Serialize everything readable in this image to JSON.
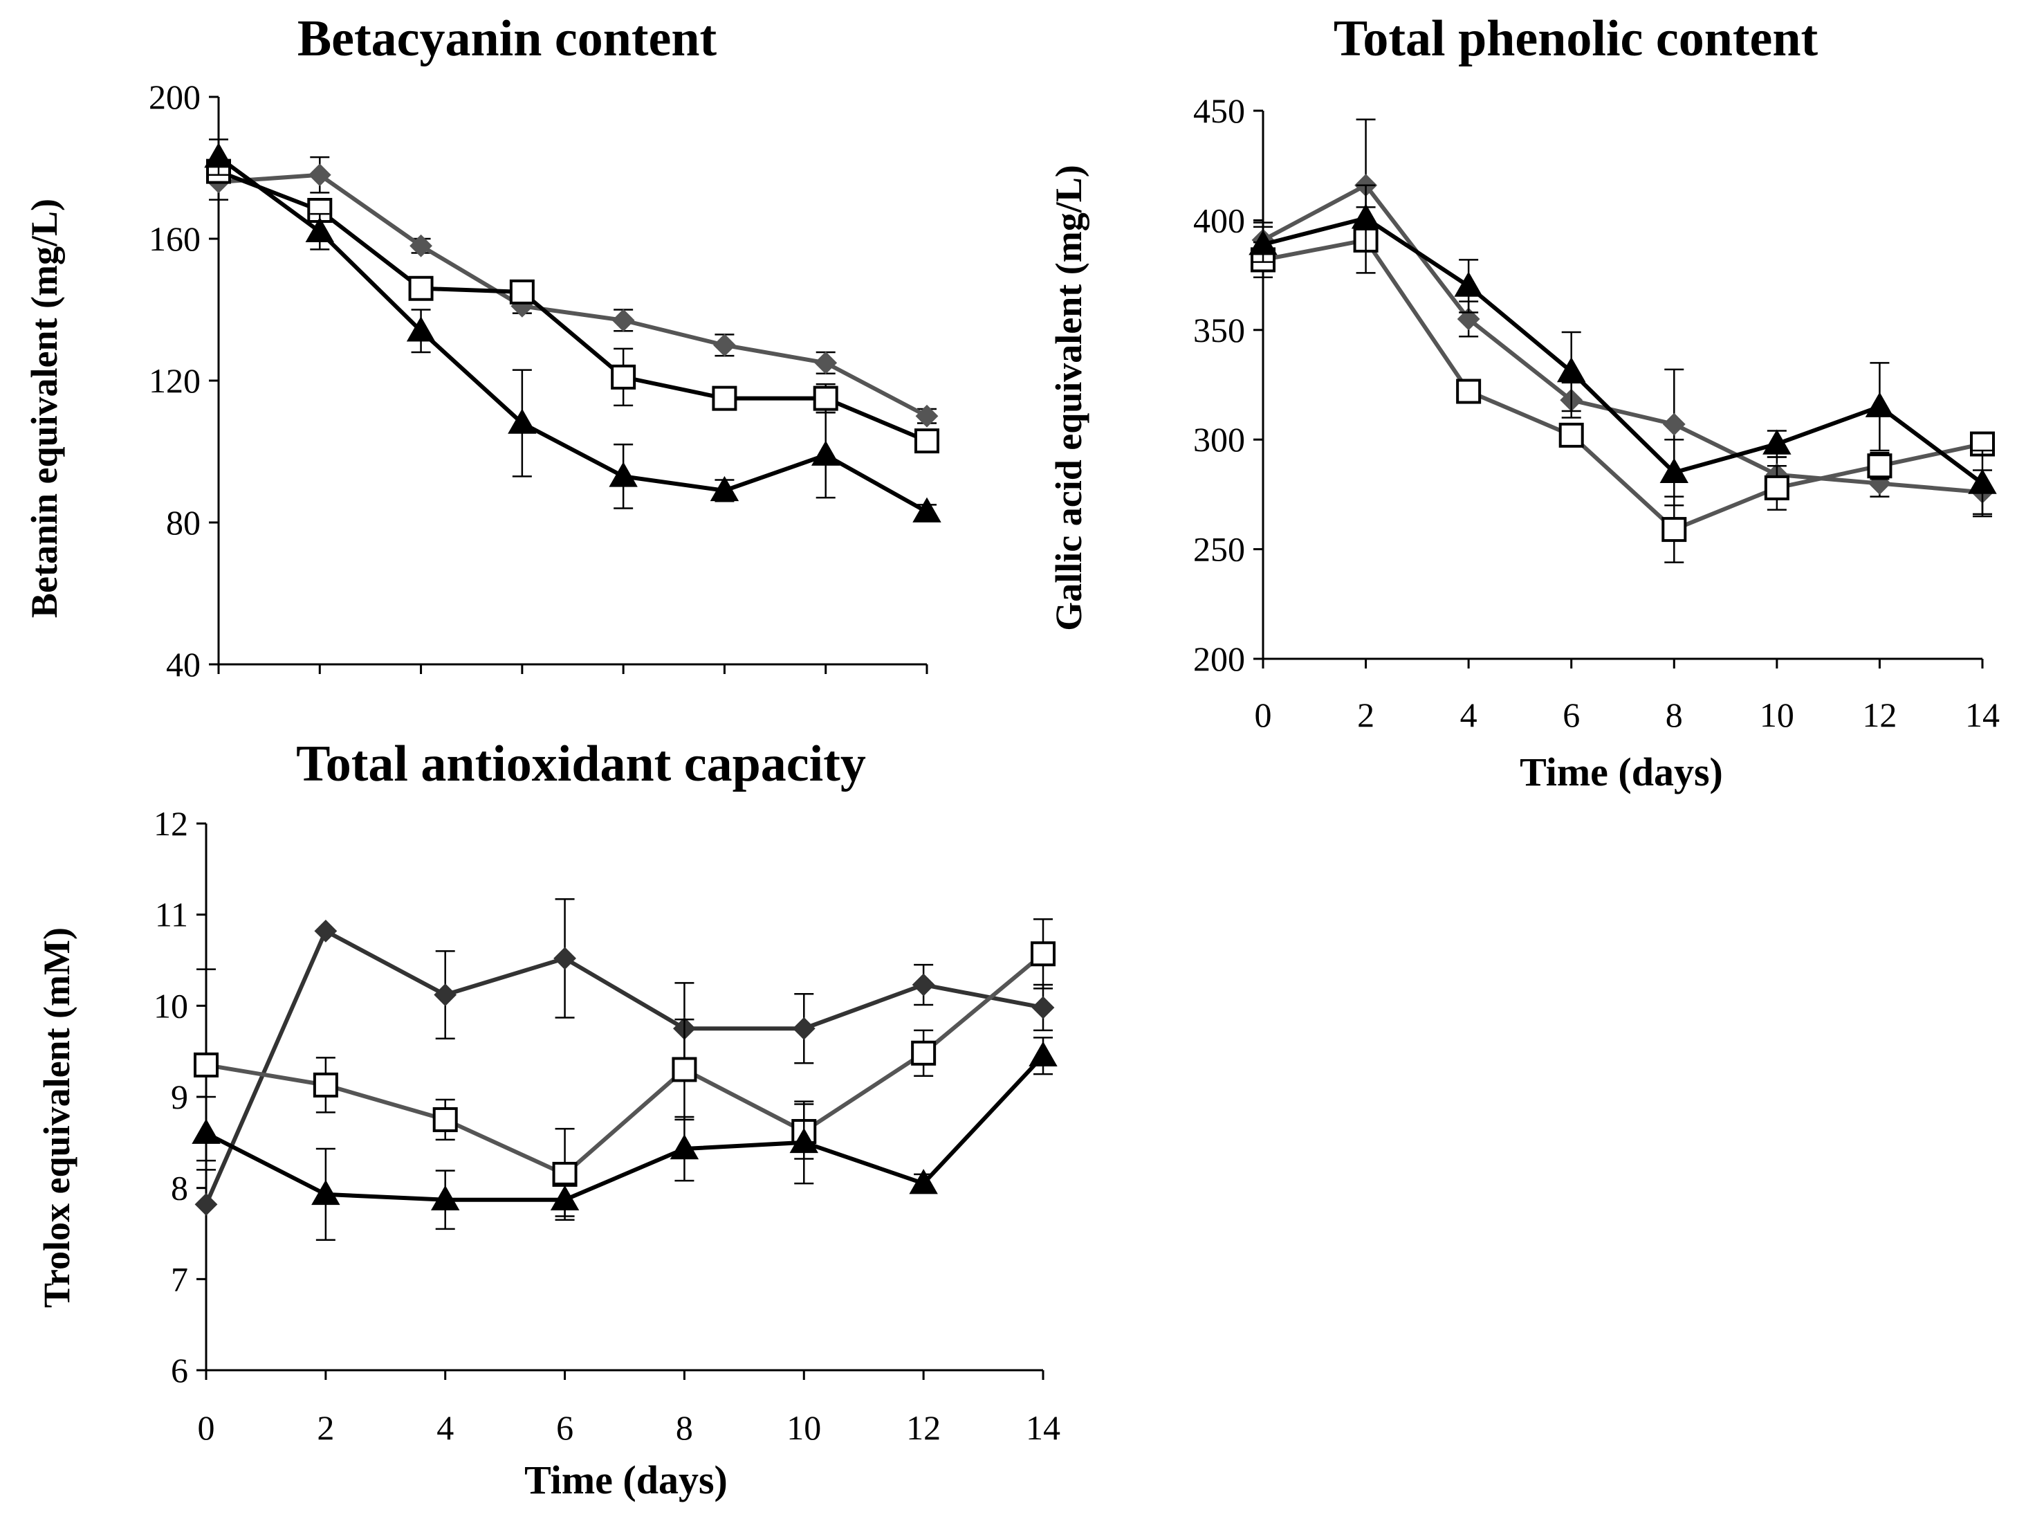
{
  "chart_data": [
    {
      "type": "line",
      "title": "Betacyanin content",
      "xlabel": "",
      "ylabel": "Betanin equivalent (mg/L)",
      "x": [
        0,
        2,
        4,
        6,
        8,
        10,
        12,
        14
      ],
      "ylim": [
        40,
        200
      ],
      "yticks": [
        "40",
        "80",
        "120",
        "160",
        "200"
      ],
      "yticks_values": [
        40,
        80,
        120,
        160,
        200
      ],
      "xticks": [],
      "series": [
        {
          "name": "diamond",
          "marker": "diamond",
          "color": "#555555",
          "values": [
            176,
            178,
            158,
            141,
            137,
            130,
            125,
            110
          ],
          "errors": [
            5,
            5,
            2,
            2,
            3,
            3,
            3,
            2
          ]
        },
        {
          "name": "square",
          "marker": "square",
          "color": "#000000",
          "values": [
            179,
            168,
            146,
            145,
            121,
            115,
            115,
            103
          ],
          "errors": [
            3,
            3,
            2,
            2,
            8,
            3,
            4,
            2
          ]
        },
        {
          "name": "triangle",
          "marker": "triangle",
          "color": "#000000",
          "values": [
            183,
            162,
            134,
            108,
            93,
            89,
            99,
            83
          ],
          "errors": [
            5,
            5,
            6,
            15,
            9,
            3,
            12,
            2
          ]
        }
      ]
    },
    {
      "type": "line",
      "title": "Total phenolic content",
      "xlabel": "Time (days)",
      "ylabel": "Gallic acid equivalent (mg/L)",
      "x": [
        0,
        2,
        4,
        6,
        8,
        10,
        12,
        14
      ],
      "ylim": [
        200,
        450
      ],
      "yticks": [
        "200",
        "250",
        "300",
        "350",
        "400",
        "450"
      ],
      "yticks_values": [
        200,
        250,
        300,
        350,
        400,
        450
      ],
      "xticks": [
        "0",
        "2",
        "4",
        "6",
        "8",
        "10",
        "12",
        "14"
      ],
      "series": [
        {
          "name": "diamond",
          "marker": "diamond",
          "color": "#555555",
          "values": [
            391,
            416,
            355,
            318,
            307,
            284,
            280,
            276
          ],
          "errors": [
            8,
            30,
            8,
            8,
            25,
            8,
            6,
            10
          ]
        },
        {
          "name": "square",
          "marker": "square",
          "color": "#555555",
          "values": [
            382,
            391,
            322,
            302,
            259,
            278,
            288,
            298
          ],
          "errors": [
            8,
            15,
            5,
            5,
            15,
            10,
            6,
            5
          ]
        },
        {
          "name": "triangle",
          "marker": "triangle",
          "color": "#000000",
          "values": [
            389,
            401,
            370,
            331,
            285,
            298,
            315,
            280
          ],
          "errors": [
            8,
            15,
            12,
            18,
            15,
            6,
            20,
            15
          ]
        }
      ]
    },
    {
      "type": "line",
      "title": "Total antioxidant capacity",
      "xlabel": "Time (days)",
      "ylabel": "Trolox  equivalent (mM)",
      "x": [
        0,
        2,
        4,
        6,
        8,
        10,
        12,
        14
      ],
      "ylim": [
        6,
        12
      ],
      "yticks": [
        "6",
        "7",
        "8",
        "9",
        "10",
        "11",
        "12"
      ],
      "yticks_values": [
        6,
        7,
        8,
        9,
        10,
        11,
        12
      ],
      "xticks": [
        "0",
        "2",
        "4",
        "6",
        "8",
        "10",
        "12",
        "14"
      ],
      "series": [
        {
          "name": "diamond",
          "marker": "diamond",
          "color": "#333333",
          "values": [
            7.82,
            10.82,
            10.12,
            10.52,
            9.75,
            9.75,
            10.23,
            9.98
          ],
          "errors": [
            0.0,
            0.0,
            0.48,
            0.65,
            0.5,
            0.38,
            0.22,
            0.25
          ]
        },
        {
          "name": "square",
          "marker": "square",
          "color": "#555555",
          "values": [
            9.35,
            9.13,
            8.75,
            8.15,
            9.3,
            8.62,
            9.48,
            10.57
          ],
          "errors": [
            1.05,
            0.3,
            0.22,
            0.5,
            0.55,
            0.3,
            0.25,
            0.38
          ]
        },
        {
          "name": "triangle",
          "marker": "triangle",
          "color": "#000000",
          "values": [
            8.6,
            7.93,
            7.87,
            7.87,
            8.43,
            8.5,
            8.05,
            9.45
          ],
          "errors": [
            0.4,
            0.5,
            0.32,
            0.18,
            0.35,
            0.45,
            0.1,
            0.2
          ]
        }
      ]
    }
  ]
}
